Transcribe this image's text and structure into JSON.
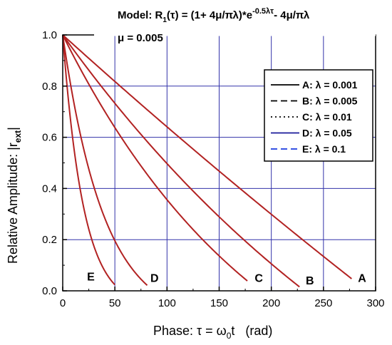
{
  "chart_data": {
    "type": "line",
    "title": "Model: R1(τ) = (1+ 4μ/πλ)*e^(-0.5λτ) - 4μ/πλ",
    "title_parts": {
      "prefix": "Model: R",
      "sub": "1",
      "mid": "(τ) = (1+ 4μ/πλ)*e",
      "sup": "-0.5λτ",
      "suffix": "- 4μ/πλ"
    },
    "subtitle": "μ = 0.005",
    "xlabel": "Phase: τ = ω0t (rad)",
    "xlabel_parts": {
      "prefix": "Phase: τ = ω",
      "sub": "0",
      "suffix": "t   (rad)"
    },
    "ylabel": "Relative Amplitude: |rext|",
    "ylabel_parts": {
      "prefix": "Relative Amplitude: |r",
      "sub": "ext",
      "suffix": "|"
    },
    "xlim": [
      0,
      300
    ],
    "ylim": [
      0,
      1.0
    ],
    "xticks": [
      "0",
      "50",
      "100",
      "150",
      "200",
      "250",
      "300"
    ],
    "yticks": [
      "0.0",
      "0.2",
      "0.4",
      "0.6",
      "0.8",
      "1.0"
    ],
    "grid": true,
    "legend_position": "top-right",
    "legend": [
      {
        "label": "A: λ = 0.001",
        "style": "solid",
        "color": "#000000"
      },
      {
        "label": "B: λ = 0.005",
        "style": "dashed",
        "color": "#000000"
      },
      {
        "label": "C: λ = 0.01",
        "style": "dotted",
        "color": "#000000"
      },
      {
        "label": "D: λ = 0.05",
        "style": "solid",
        "color": "#1a1a9a"
      },
      {
        "label": "E: λ = 0.1",
        "style": "dashed",
        "color": "#1a3adf"
      }
    ],
    "series": [
      {
        "name": "A",
        "lambda": 0.001,
        "tau_end": 277
      },
      {
        "name": "B",
        "lambda": 0.005,
        "tau_end": 227
      },
      {
        "name": "C",
        "lambda": 0.01,
        "tau_end": 177
      },
      {
        "name": "D",
        "lambda": 0.05,
        "tau_end": 81
      },
      {
        "name": "E",
        "lambda": 0.1,
        "tau_end": 50
      }
    ],
    "curve_labels": [
      {
        "text": "A",
        "x": 287,
        "y": 0.035
      },
      {
        "text": "B",
        "x": 237,
        "y": 0.025
      },
      {
        "text": "C",
        "x": 188,
        "y": 0.035
      },
      {
        "text": "D",
        "x": 88,
        "y": 0.035
      },
      {
        "text": "E",
        "x": 27,
        "y": 0.04
      }
    ],
    "mu": 0.005,
    "curve_color": "#b22222",
    "grid_color": "#3333aa"
  }
}
